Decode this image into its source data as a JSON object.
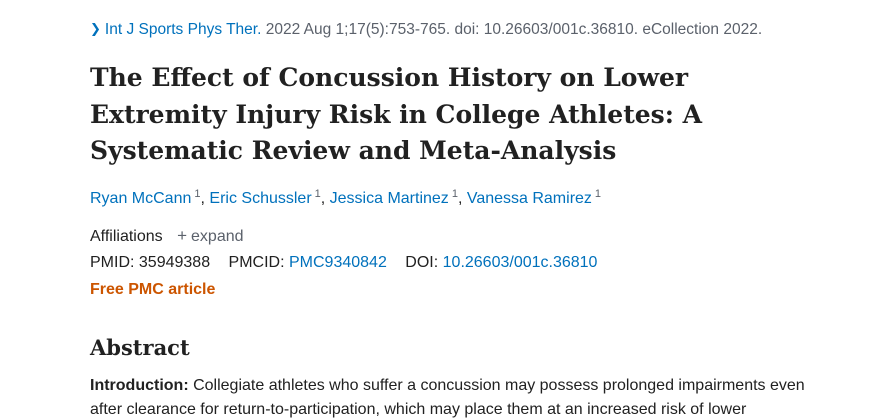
{
  "citation": {
    "journal": "Int J Sports Phys Ther.",
    "details": "2022 Aug 1;17(5):753-765. doi: 10.26603/001c.36810. eCollection 2022."
  },
  "title": "The Effect of Concussion History on Lower Extremity Injury Risk in College Athletes: A Systematic Review and Meta-Analysis",
  "authors": [
    {
      "name": "Ryan McCann",
      "aff": "1"
    },
    {
      "name": "Eric Schussler",
      "aff": "1"
    },
    {
      "name": "Jessica Martinez",
      "aff": "1"
    },
    {
      "name": "Vanessa Ramirez",
      "aff": "1"
    }
  ],
  "affiliations": {
    "label": "Affiliations",
    "expand_label": "expand"
  },
  "identifiers": {
    "pmid_label": "PMID:",
    "pmid": "35949388",
    "pmcid_label": "PMCID:",
    "pmcid": "PMC9340842",
    "doi_label": "DOI:",
    "doi": "10.26603/001c.36810"
  },
  "free_pmc": "Free PMC article",
  "abstract": {
    "heading": "Abstract",
    "intro_label": "Introduction:",
    "intro_text": "Collegiate athletes who suffer a concussion may possess prolonged impairments even after clearance for return-to-participation, which may place them at an increased risk of lower"
  },
  "colors": {
    "link": "#0071bc",
    "free_pmc": "#cc5500",
    "text": "#212121"
  }
}
